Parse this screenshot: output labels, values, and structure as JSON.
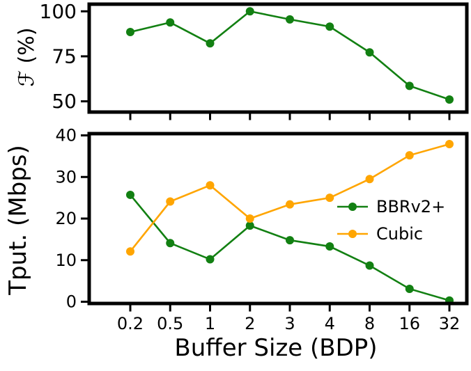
{
  "chart_data": [
    {
      "type": "line",
      "title": "",
      "ylabel": "ℱ (%)",
      "xlabel": "",
      "categories": [
        "0.2",
        "0.5",
        "1",
        "2",
        "3",
        "4",
        "8",
        "16",
        "32"
      ],
      "ylim": [
        45,
        103
      ],
      "yticks": [
        50,
        75,
        100
      ],
      "grid": false,
      "series": [
        {
          "color": "#128012",
          "values": [
            88.5,
            93.8,
            82.2,
            100,
            95.5,
            91.5,
            77.2,
            58.6,
            51
          ]
        }
      ]
    },
    {
      "type": "line",
      "title": "",
      "ylabel": "Tput. (Mbps)",
      "xlabel": "Buffer Size (BDP)",
      "categories": [
        "0.2",
        "0.5",
        "1",
        "2",
        "3",
        "4",
        "8",
        "16",
        "32"
      ],
      "ylim": [
        0,
        40
      ],
      "yticks": [
        0,
        10,
        20,
        30,
        40
      ],
      "grid": false,
      "legend_position": "right",
      "series": [
        {
          "name": "BBRv2+",
          "color": "#128012",
          "values": [
            25.7,
            14.1,
            10.2,
            18.3,
            14.8,
            13.3,
            8.7,
            3.1,
            0.3
          ]
        },
        {
          "name": "Cubic",
          "color": "#ffa500",
          "values": [
            12.1,
            24.1,
            28.0,
            20.0,
            23.4,
            25.0,
            29.5,
            35.2,
            37.9
          ]
        }
      ]
    }
  ]
}
